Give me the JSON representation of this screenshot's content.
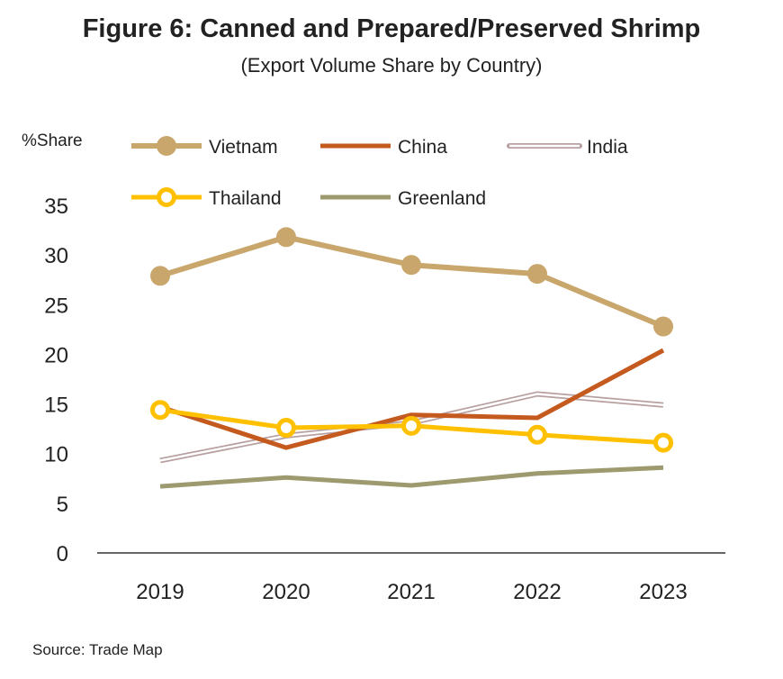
{
  "chart_data": {
    "type": "line",
    "title": "Figure 6: Canned and Prepared/Preserved Shrimp",
    "subtitle": "(Export Volume Share by Country)",
    "ylabel": "%Share",
    "xlabel": "",
    "categories": [
      "2019",
      "2020",
      "2021",
      "2022",
      "2023"
    ],
    "ylim": [
      0,
      35
    ],
    "yticks": [
      "0",
      "5",
      "10",
      "15",
      "20",
      "25",
      "30",
      "35"
    ],
    "legend_position": "top",
    "series": [
      {
        "name": "Vietnam",
        "values": [
          27.9,
          31.8,
          29.0,
          28.1,
          22.8
        ],
        "color": "#C9A66B",
        "style": "thick-markers"
      },
      {
        "name": "China",
        "values": [
          14.7,
          10.6,
          13.9,
          13.6,
          20.4
        ],
        "color": "#C55A1E",
        "style": "solid"
      },
      {
        "name": "India",
        "values": [
          9.3,
          11.8,
          13.1,
          16.0,
          14.9
        ],
        "color": "#B8A0A0",
        "style": "hollow"
      },
      {
        "name": "Thailand",
        "values": [
          14.4,
          12.6,
          12.8,
          11.9,
          11.1
        ],
        "color": "#FFC000",
        "style": "hollow-markers"
      },
      {
        "name": "Greenland",
        "values": [
          6.7,
          7.6,
          6.8,
          8.0,
          8.6
        ],
        "color": "#9C9A6E",
        "style": "solid"
      }
    ]
  },
  "source": "Source: Trade Map"
}
